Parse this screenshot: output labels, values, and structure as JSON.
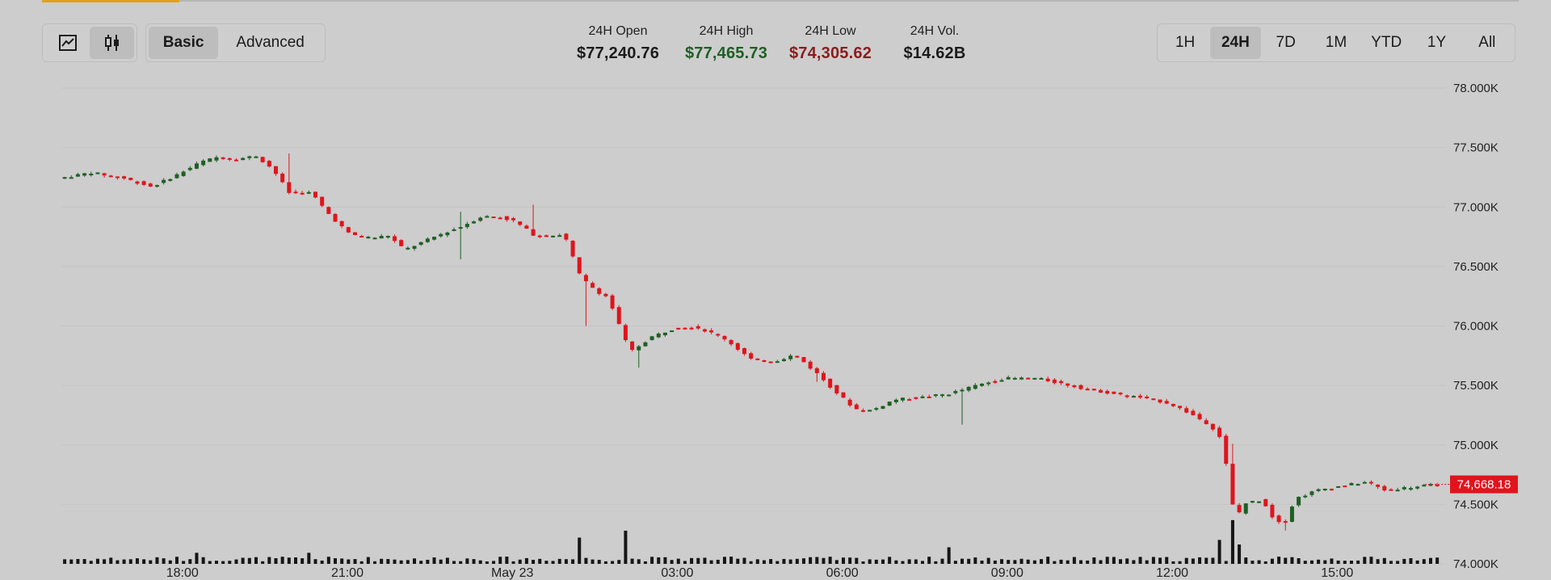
{
  "toolbar": {
    "chart_types": [
      {
        "name": "line-chart-icon",
        "active": false
      },
      {
        "name": "candlestick-icon",
        "active": true
      }
    ],
    "modes": [
      {
        "label": "Basic",
        "active": true
      },
      {
        "label": "Advanced",
        "active": false
      }
    ],
    "ranges": [
      {
        "label": "1H",
        "active": false
      },
      {
        "label": "24H",
        "active": true
      },
      {
        "label": "7D",
        "active": false
      },
      {
        "label": "1M",
        "active": false
      },
      {
        "label": "YTD",
        "active": false
      },
      {
        "label": "1Y",
        "active": false
      },
      {
        "label": "All",
        "active": false
      }
    ]
  },
  "stats": [
    {
      "label": "24H Open",
      "value": "$77,240.76",
      "color": "#1b1b1b"
    },
    {
      "label": "24H High",
      "value": "$77,465.73",
      "color": "#1f5f24"
    },
    {
      "label": "24H Low",
      "value": "$74,305.62",
      "color": "#8a1d1d"
    },
    {
      "label": "24H Vol.",
      "value": "$14.62B",
      "color": "#1b1b1b"
    }
  ],
  "colors": {
    "up": "#1f5f24",
    "down": "#e0141c",
    "grid": "#c4c4c4",
    "volume": "#151515",
    "price_tag_bg": "#e0141c"
  },
  "chart_data": {
    "type": "candlestick",
    "y_ticks": [
      "78.000K",
      "77.500K",
      "77.000K",
      "76.500K",
      "76.000K",
      "75.500K",
      "75.000K",
      "74.500K",
      "74.000K"
    ],
    "y_tick_values": [
      78000,
      77500,
      77000,
      76500,
      76000,
      75500,
      75000,
      74500,
      74000
    ],
    "ylim": [
      74000,
      78000
    ],
    "x_ticks": [
      "18:00",
      "21:00",
      "May 23",
      "03:00",
      "06:00",
      "09:00",
      "12:00",
      "15:00"
    ],
    "x_tick_hours": [
      18,
      21,
      24,
      27,
      30,
      33,
      36,
      39
    ],
    "x_range_hours": [
      15.8,
      40.95
    ],
    "current_price": "74,668.18",
    "current_value": 74668.18,
    "price_path": [
      [
        15.8,
        77240
      ],
      [
        16.4,
        77290
      ],
      [
        17.0,
        77240
      ],
      [
        17.5,
        77170
      ],
      [
        18.0,
        77280
      ],
      [
        18.4,
        77380
      ],
      [
        18.7,
        77420
      ],
      [
        19.0,
        77400
      ],
      [
        19.4,
        77430
      ],
      [
        19.7,
        77320
      ],
      [
        20.0,
        77120
      ],
      [
        20.4,
        77120
      ],
      [
        20.7,
        76950
      ],
      [
        21.1,
        76770
      ],
      [
        21.5,
        76740
      ],
      [
        21.8,
        76760
      ],
      [
        22.1,
        76640
      ],
      [
        22.5,
        76720
      ],
      [
        22.8,
        76780
      ],
      [
        23.1,
        76830
      ],
      [
        23.5,
        76920
      ],
      [
        23.8,
        76920
      ],
      [
        24.1,
        76880
      ],
      [
        24.5,
        76750
      ],
      [
        25.0,
        76770
      ],
      [
        25.3,
        76410
      ],
      [
        25.6,
        76290
      ],
      [
        25.8,
        76240
      ],
      [
        26.2,
        75780
      ],
      [
        26.6,
        75910
      ],
      [
        27.0,
        75980
      ],
      [
        27.4,
        75990
      ],
      [
        27.9,
        75900
      ],
      [
        28.4,
        75720
      ],
      [
        28.8,
        75700
      ],
      [
        29.2,
        75760
      ],
      [
        29.6,
        75600
      ],
      [
        30.0,
        75420
      ],
      [
        30.3,
        75300
      ],
      [
        30.6,
        75290
      ],
      [
        31.0,
        75380
      ],
      [
        31.5,
        75400
      ],
      [
        32.0,
        75430
      ],
      [
        32.5,
        75500
      ],
      [
        33.0,
        75560
      ],
      [
        33.6,
        75560
      ],
      [
        34.0,
        75520
      ],
      [
        34.5,
        75470
      ],
      [
        35.0,
        75430
      ],
      [
        35.6,
        75390
      ],
      [
        36.0,
        75350
      ],
      [
        36.4,
        75260
      ],
      [
        36.7,
        75180
      ],
      [
        36.9,
        75100
      ],
      [
        37.0,
        74950
      ],
      [
        37.2,
        74380
      ],
      [
        37.4,
        74510
      ],
      [
        37.7,
        74540
      ],
      [
        37.9,
        74380
      ],
      [
        38.1,
        74340
      ],
      [
        38.3,
        74550
      ],
      [
        38.7,
        74620
      ],
      [
        39.2,
        74660
      ],
      [
        39.6,
        74690
      ],
      [
        39.9,
        74620
      ],
      [
        40.3,
        74640
      ],
      [
        40.95,
        74668
      ]
    ],
    "spikes": [
      [
        19.9,
        77450,
        77380
      ],
      [
        23.05,
        76960,
        76560
      ],
      [
        24.4,
        77020,
        76830
      ],
      [
        25.3,
        76000,
        76200
      ],
      [
        26.25,
        75650,
        75780
      ],
      [
        29.5,
        75530,
        75620
      ],
      [
        32.2,
        75170,
        75300
      ],
      [
        37.05,
        74920,
        75010
      ],
      [
        38.1,
        74280,
        74330
      ]
    ],
    "volume_spikes": [
      [
        25.25,
        0.57
      ],
      [
        26.1,
        0.72
      ],
      [
        31.9,
        0.36
      ],
      [
        36.85,
        0.52
      ],
      [
        37.05,
        0.95
      ],
      [
        37.25,
        0.42
      ],
      [
        18.3,
        0.24
      ],
      [
        20.3,
        0.24
      ]
    ]
  }
}
